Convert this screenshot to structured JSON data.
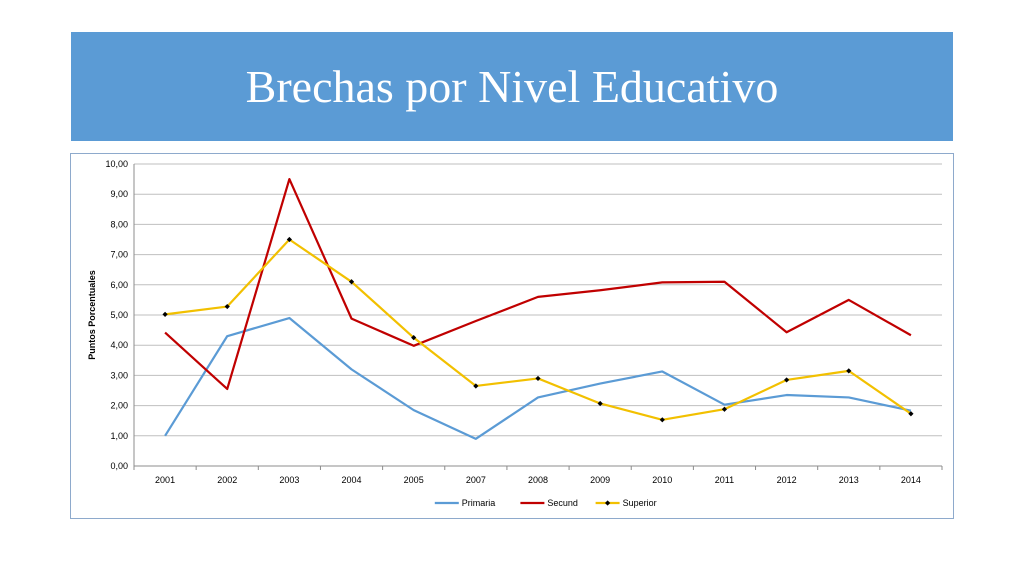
{
  "title": "Brechas por Nivel Educativo",
  "chart_data": {
    "type": "line",
    "categories": [
      "2001",
      "2002",
      "2003",
      "2004",
      "2005",
      "2007",
      "2008",
      "2009",
      "2010",
      "2011",
      "2012",
      "2013",
      "2014"
    ],
    "ylabel": "Puntos Porcentuales",
    "ylim": [
      0,
      10
    ],
    "yticks": [
      "0,00",
      "1,00",
      "2,00",
      "3,00",
      "4,00",
      "5,00",
      "6,00",
      "7,00",
      "8,00",
      "9,00",
      "10,00"
    ],
    "grid": true,
    "legend_position": "bottom",
    "series": [
      {
        "name": "Primaria",
        "color": "#5b9bd5",
        "marker": "none",
        "values": [
          1.0,
          4.3,
          4.9,
          3.2,
          1.85,
          0.9,
          2.27,
          2.73,
          3.13,
          2.03,
          2.35,
          2.27,
          1.83
        ]
      },
      {
        "name": "Secund",
        "color": "#c00000",
        "marker": "none",
        "values": [
          4.42,
          2.55,
          9.5,
          4.88,
          3.98,
          4.8,
          5.6,
          5.82,
          6.08,
          6.1,
          4.43,
          5.5,
          4.33
        ]
      },
      {
        "name": "Superior",
        "color": "#f2c000",
        "marker": "diamond",
        "values": [
          5.02,
          5.28,
          7.5,
          6.1,
          4.25,
          2.65,
          2.9,
          2.07,
          1.53,
          1.88,
          2.85,
          3.15,
          1.73
        ]
      }
    ]
  }
}
